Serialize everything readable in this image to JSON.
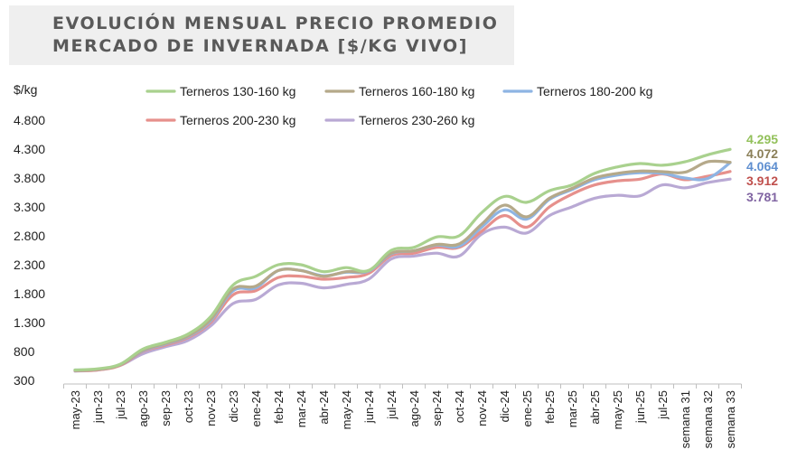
{
  "title": {
    "line1": "EVOLUCIÓN MENSUAL PRECIO PROMEDIO",
    "line2": "MERCADO DE INVERNADA [$/KG VIVO]"
  },
  "chart_data": {
    "type": "line",
    "ylabel": "$/kg",
    "ylim": [
      300,
      4800
    ],
    "yticks": [
      "4.800",
      "4.300",
      "3.800",
      "3.300",
      "2.800",
      "2.300",
      "1.800",
      "1.300",
      "800",
      "300"
    ],
    "ytick_values": [
      4800,
      4300,
      3800,
      3300,
      2800,
      2300,
      1800,
      1300,
      800,
      300
    ],
    "categories": [
      "may-23",
      "jun-23",
      "jul-23",
      "ago-23",
      "sep-23",
      "oct-23",
      "nov-23",
      "dic-23",
      "ene-24",
      "feb-24",
      "mar-24",
      "abr-24",
      "may-24",
      "jun-24",
      "jul-24",
      "ago-24",
      "sep-24",
      "oct-24",
      "nov-24",
      "dic-24",
      "ene-25",
      "feb-25",
      "mar-25",
      "abr-25",
      "may-25",
      "jun-25",
      "jul-25",
      "semana 31",
      "semana 32",
      "semana 33"
    ],
    "legend_position": "top",
    "grid": false,
    "series": [
      {
        "name": "Terneros 130-160 kg",
        "color": "#a9d18e",
        "end_label": "4.295",
        "values": [
          480,
          500,
          580,
          840,
          960,
          1100,
          1400,
          1950,
          2100,
          2300,
          2300,
          2180,
          2250,
          2200,
          2550,
          2600,
          2780,
          2800,
          3200,
          3480,
          3380,
          3580,
          3680,
          3880,
          3990,
          4050,
          4020,
          4080,
          4200,
          4295
        ]
      },
      {
        "name": "Terneros 160-180 kg",
        "color": "#b5a98a",
        "end_label": "4.072",
        "values": [
          470,
          490,
          570,
          820,
          940,
          1070,
          1350,
          1880,
          1930,
          2200,
          2200,
          2100,
          2180,
          2200,
          2500,
          2540,
          2650,
          2660,
          3000,
          3330,
          3130,
          3450,
          3620,
          3800,
          3880,
          3920,
          3910,
          3900,
          4080,
          4072
        ]
      },
      {
        "name": "Terneros 180-200 kg",
        "color": "#8eb4e3",
        "end_label": "4.064",
        "values": [
          480,
          490,
          570,
          810,
          930,
          1060,
          1330,
          1850,
          1900,
          2200,
          2200,
          2110,
          2170,
          2190,
          2490,
          2540,
          2640,
          2620,
          2950,
          3250,
          3090,
          3430,
          3600,
          3770,
          3850,
          3890,
          3880,
          3800,
          3790,
          4064
        ]
      },
      {
        "name": "Terneros 200-230 kg",
        "color": "#e6908c",
        "end_label": "3.912",
        "values": [
          470,
          480,
          560,
          800,
          910,
          1040,
          1300,
          1780,
          1850,
          2080,
          2100,
          2050,
          2080,
          2150,
          2460,
          2500,
          2600,
          2600,
          2880,
          3150,
          2950,
          3300,
          3520,
          3680,
          3750,
          3780,
          3870,
          3770,
          3830,
          3912
        ]
      },
      {
        "name": "Terneros 230-260 kg",
        "color": "#b9a9d4",
        "end_label": "3.781",
        "values": [
          460,
          480,
          560,
          760,
          880,
          990,
          1240,
          1630,
          1700,
          1950,
          1980,
          1900,
          1960,
          2050,
          2400,
          2450,
          2500,
          2450,
          2830,
          2950,
          2850,
          3150,
          3300,
          3450,
          3500,
          3490,
          3680,
          3630,
          3720,
          3781
        ]
      }
    ]
  }
}
